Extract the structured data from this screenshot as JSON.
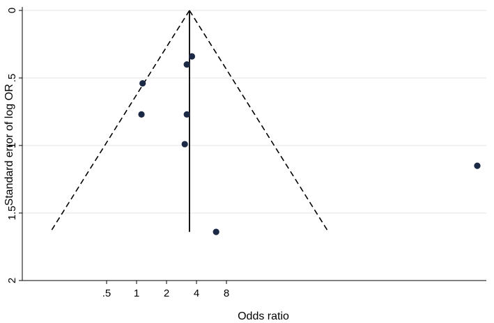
{
  "chart_data": {
    "type": "scatter",
    "subtype": "funnel plot",
    "xlabel": "Odds ratio",
    "ylabel": "Standard error of log OR",
    "x_scale": "log2",
    "x_ticks": [
      0.5,
      1,
      2,
      4,
      8
    ],
    "x_tick_labels": [
      ".5",
      "1",
      "2",
      "4",
      "8"
    ],
    "y_reversed": true,
    "y_ticks": [
      0,
      0.5,
      1,
      1.5,
      2
    ],
    "y_tick_labels": [
      "0",
      ".5",
      "1",
      "1.5",
      "2"
    ],
    "ylim": [
      0,
      2
    ],
    "grid": "horizontal",
    "pooled_estimate": 3.4,
    "pseudo_ci_max_se": 1.64,
    "points": [
      {
        "x": 3.6,
        "y": 0.34
      },
      {
        "x": 3.2,
        "y": 0.4
      },
      {
        "x": 1.15,
        "y": 0.54
      },
      {
        "x": 1.12,
        "y": 0.77
      },
      {
        "x": 3.2,
        "y": 0.77
      },
      {
        "x": 3.05,
        "y": 0.99
      },
      {
        "x": 6.3,
        "y": 1.64
      },
      {
        "x": 7000,
        "y": 1.15
      }
    ],
    "colors": {
      "points": "#1b2945",
      "lines": "#000000",
      "grid": "#e3e3e3",
      "frame": "#000000"
    }
  }
}
